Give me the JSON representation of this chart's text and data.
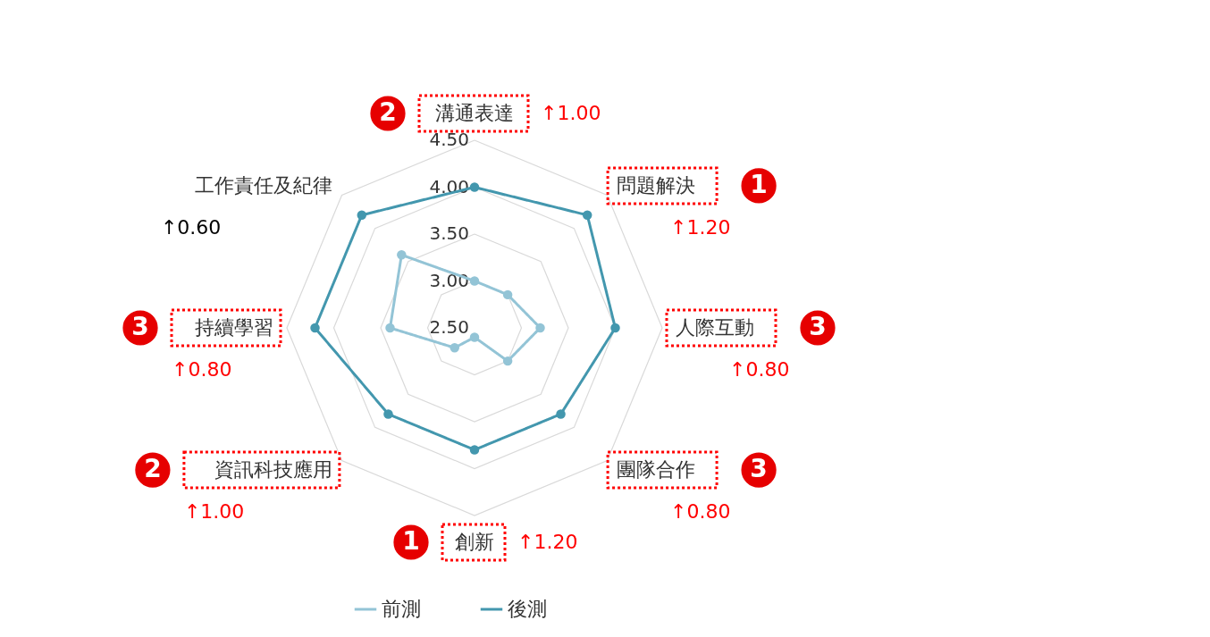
{
  "chart_data": {
    "type": "radar",
    "categories": [
      "溝通表達",
      "問題解決",
      "人際互動",
      "團隊合作",
      "創新",
      "資訊科技應用",
      "持續學習",
      "工作責任及紀律"
    ],
    "series": [
      {
        "name": "前測",
        "color": "#93c4d6",
        "values": [
          3.0,
          3.0,
          3.2,
          3.0,
          2.6,
          2.8,
          3.4,
          3.6
        ]
      },
      {
        "name": "後測",
        "color": "#4397ae",
        "values": [
          4.0,
          4.2,
          4.0,
          3.8,
          3.8,
          3.8,
          4.2,
          4.2
        ]
      }
    ],
    "ylim": [
      2.5,
      4.5
    ],
    "yticks": [
      {
        "value": 2.5,
        "label": "2.50"
      },
      {
        "value": 3.0,
        "label": "3.00"
      },
      {
        "value": 3.5,
        "label": "3.50"
      },
      {
        "value": 4.0,
        "label": "4.00"
      },
      {
        "value": 4.5,
        "label": "4.50"
      }
    ],
    "grid": true,
    "legend": "bottom",
    "marker": "circle",
    "line_style": "solid",
    "annotations": [
      {
        "text": "2",
        "x": "溝通表達"
      },
      {
        "text": "↑1.00",
        "x": "溝通表達"
      },
      {
        "text": "1",
        "x": "問題解決"
      },
      {
        "text": "↑1.20",
        "x": "問題解決"
      },
      {
        "text": "3",
        "x": "人際互動"
      },
      {
        "text": "↑0.80",
        "x": "人際互動"
      },
      {
        "text": "3",
        "x": "團隊合作"
      },
      {
        "text": "↑0.80",
        "x": "團隊合作"
      },
      {
        "text": "1",
        "x": "創新"
      },
      {
        "text": "↑1.20",
        "x": "創新"
      },
      {
        "text": "2",
        "x": "資訊科技應用"
      },
      {
        "text": "↑1.00",
        "x": "資訊科技應用"
      },
      {
        "text": "3",
        "x": "持續學習"
      },
      {
        "text": "↑0.80",
        "x": "持續學習"
      },
      {
        "text": "↑0.60",
        "x": "工作責任及紀律"
      }
    ]
  }
}
